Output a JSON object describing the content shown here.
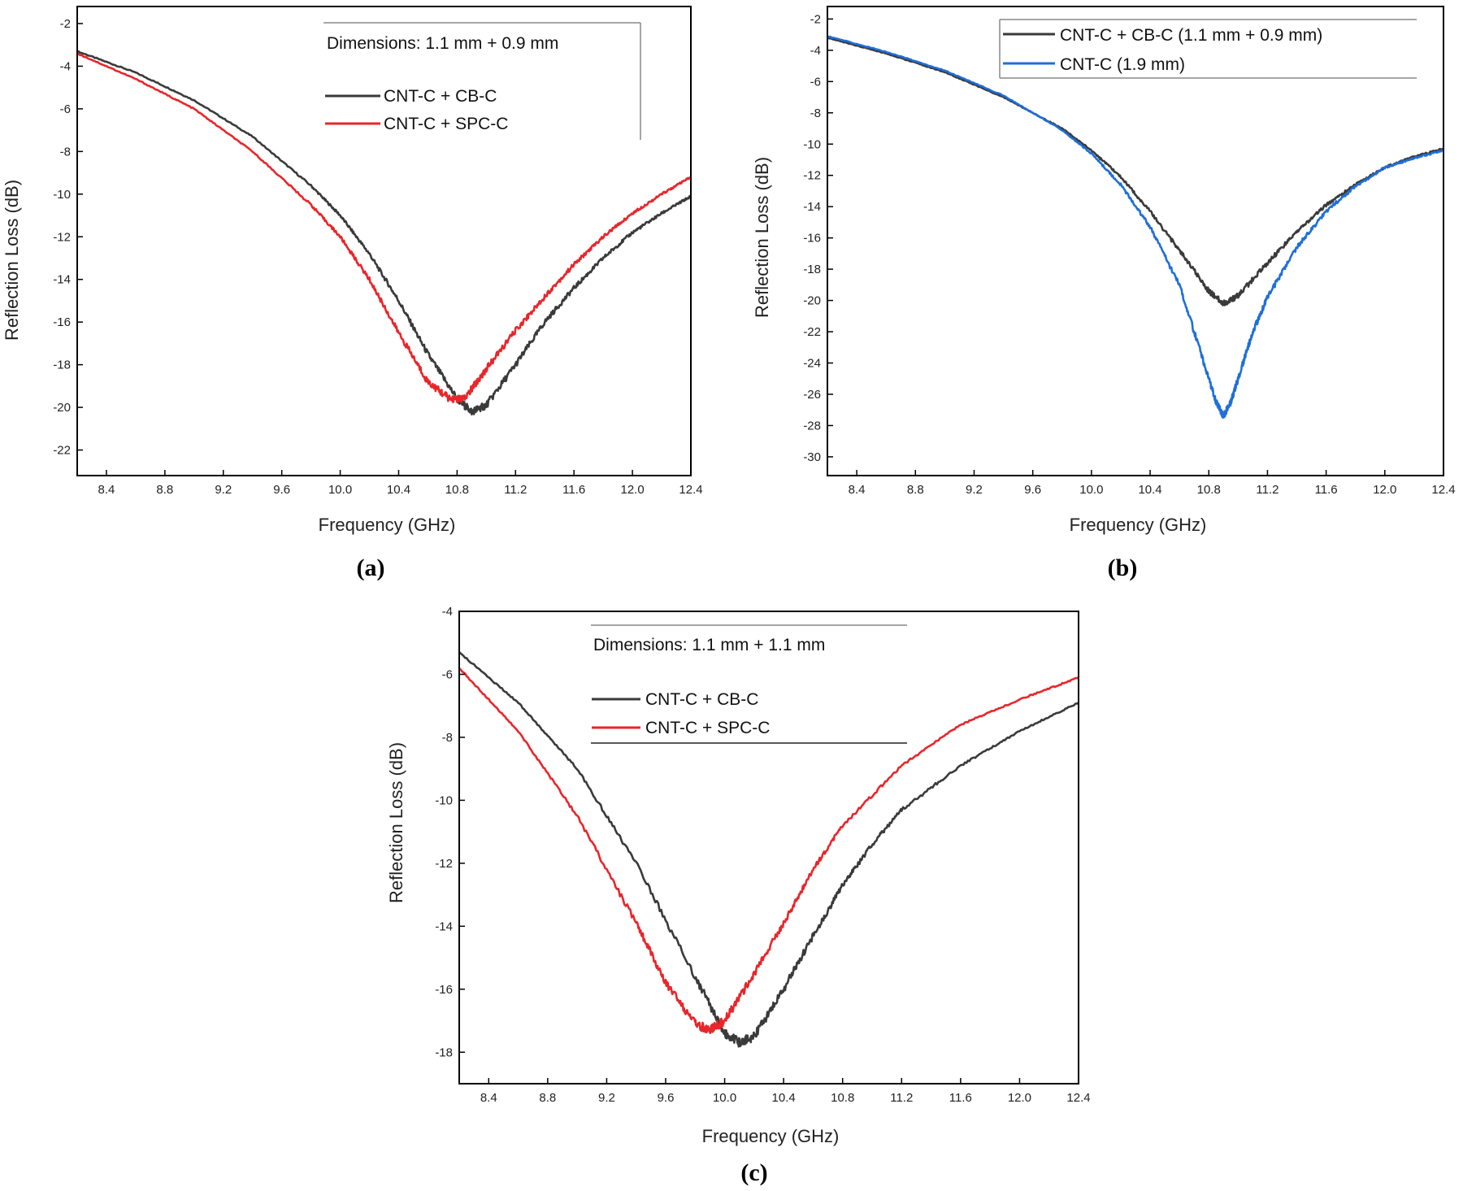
{
  "colors": {
    "black": "#3a3a3a",
    "red": "#e8262b",
    "blue": "#1f6fd8",
    "axis": "#000000"
  },
  "chart_data": [
    {
      "type": "line",
      "panel_label": "(a)",
      "xlabel": "Frequency (GHz)",
      "ylabel": "Reflection Loss (dB)",
      "xlim": [
        8.2,
        12.4
      ],
      "ylim": [
        -23.2,
        -1.2
      ],
      "xticks": [
        "8.4",
        "8.8",
        "9.2",
        "9.6",
        "10.0",
        "10.4",
        "10.8",
        "11.2",
        "11.6",
        "12.0",
        "12.4"
      ],
      "yticks": [
        "-2",
        "-4",
        "-6",
        "-8",
        "-10",
        "-12",
        "-14",
        "-16",
        "-18",
        "-20",
        "-22"
      ],
      "legend_title": "Dimensions: 1.1 mm + 0.9 mm",
      "series": [
        {
          "name": "CNT-C + CB-C",
          "color": "black",
          "x": [
            8.2,
            8.6,
            9.0,
            9.4,
            9.8,
            10.0,
            10.2,
            10.4,
            10.6,
            10.8,
            10.9,
            11.0,
            11.2,
            11.4,
            11.6,
            11.8,
            12.0,
            12.2,
            12.4
          ],
          "y": [
            -3.3,
            -4.3,
            -5.6,
            -7.3,
            -9.6,
            -11.0,
            -12.8,
            -15.0,
            -17.5,
            -19.6,
            -20.2,
            -19.9,
            -18.0,
            -16.0,
            -14.4,
            -13.0,
            -11.8,
            -10.9,
            -10.1
          ]
        },
        {
          "name": "CNT-C + SPC-C",
          "color": "red",
          "x": [
            8.2,
            8.6,
            9.0,
            9.4,
            9.8,
            10.0,
            10.2,
            10.4,
            10.6,
            10.75,
            10.85,
            11.0,
            11.2,
            11.4,
            11.6,
            11.8,
            12.0,
            12.2,
            12.4
          ],
          "y": [
            -3.4,
            -4.6,
            -6.0,
            -8.0,
            -10.5,
            -12.0,
            -14.0,
            -16.5,
            -18.8,
            -19.6,
            -19.6,
            -18.2,
            -16.4,
            -14.8,
            -13.3,
            -12.0,
            -10.9,
            -10.0,
            -9.2
          ]
        }
      ]
    },
    {
      "type": "line",
      "panel_label": "(b)",
      "xlabel": "Frequency (GHz)",
      "ylabel": "Reflection Loss (dB)",
      "xlim": [
        8.2,
        12.4
      ],
      "ylim": [
        -31.2,
        -1.2
      ],
      "xticks": [
        "8.4",
        "8.8",
        "9.2",
        "9.6",
        "10.0",
        "10.4",
        "10.8",
        "11.2",
        "11.6",
        "12.0",
        "12.4"
      ],
      "yticks": [
        "-2",
        "-4",
        "-6",
        "-8",
        "-10",
        "-12",
        "-14",
        "-16",
        "-18",
        "-20",
        "-22",
        "-24",
        "-26",
        "-28",
        "-30"
      ],
      "legend_title": "",
      "series": [
        {
          "name": "CNT-C + CB-C (1.1 mm + 0.9 mm)",
          "color": "black",
          "x": [
            8.2,
            8.6,
            9.0,
            9.4,
            9.8,
            10.0,
            10.2,
            10.4,
            10.6,
            10.8,
            10.9,
            11.0,
            11.2,
            11.4,
            11.6,
            11.8,
            12.0,
            12.2,
            12.4
          ],
          "y": [
            -3.2,
            -4.2,
            -5.4,
            -7.0,
            -9.0,
            -10.4,
            -12.1,
            -14.3,
            -16.8,
            -19.4,
            -20.2,
            -19.7,
            -17.6,
            -15.6,
            -13.9,
            -12.6,
            -11.5,
            -10.8,
            -10.3
          ]
        },
        {
          "name": "CNT-C (1.9 mm)",
          "color": "blue",
          "x": [
            8.2,
            8.6,
            9.0,
            9.4,
            9.8,
            10.0,
            10.2,
            10.4,
            10.6,
            10.75,
            10.85,
            10.9,
            10.95,
            11.0,
            11.1,
            11.2,
            11.4,
            11.6,
            11.8,
            12.0,
            12.2,
            12.4
          ],
          "y": [
            -3.1,
            -4.1,
            -5.3,
            -6.9,
            -9.1,
            -10.6,
            -12.6,
            -15.3,
            -19.0,
            -23.5,
            -26.5,
            -27.4,
            -26.5,
            -25.0,
            -22.0,
            -19.8,
            -16.6,
            -14.3,
            -12.7,
            -11.5,
            -10.9,
            -10.4
          ]
        }
      ]
    },
    {
      "type": "line",
      "panel_label": "(c)",
      "xlabel": "Frequency (GHz)",
      "ylabel": "Reflection Loss (dB)",
      "xlim": [
        8.2,
        12.4
      ],
      "ylim": [
        -19.0,
        -4.0
      ],
      "xticks": [
        "8.4",
        "8.8",
        "9.2",
        "9.6",
        "10.0",
        "10.4",
        "10.8",
        "11.2",
        "11.6",
        "12.0",
        "12.4"
      ],
      "yticks": [
        "-4",
        "-6",
        "-8",
        "-10",
        "-12",
        "-14",
        "-16",
        "-18"
      ],
      "legend_title": "Dimensions: 1.1 mm + 1.1 mm",
      "series": [
        {
          "name": "CNT-C + CB-C",
          "color": "black",
          "x": [
            8.2,
            8.6,
            9.0,
            9.4,
            9.8,
            10.0,
            10.1,
            10.2,
            10.4,
            10.6,
            10.8,
            11.0,
            11.2,
            11.6,
            12.0,
            12.4
          ],
          "y": [
            -5.3,
            -6.9,
            -9.0,
            -12.0,
            -15.6,
            -17.4,
            -17.7,
            -17.5,
            -16.0,
            -14.3,
            -12.7,
            -11.4,
            -10.3,
            -8.9,
            -7.8,
            -6.9
          ]
        },
        {
          "name": "CNT-C + SPC-C",
          "color": "red",
          "x": [
            8.2,
            8.6,
            9.0,
            9.4,
            9.6,
            9.8,
            9.9,
            10.0,
            10.2,
            10.4,
            10.6,
            10.8,
            11.2,
            11.6,
            12.0,
            12.4
          ],
          "y": [
            -5.8,
            -7.8,
            -10.5,
            -13.9,
            -15.8,
            -17.1,
            -17.3,
            -17.0,
            -15.5,
            -13.9,
            -12.2,
            -10.8,
            -8.9,
            -7.6,
            -6.8,
            -6.1
          ]
        }
      ]
    }
  ]
}
